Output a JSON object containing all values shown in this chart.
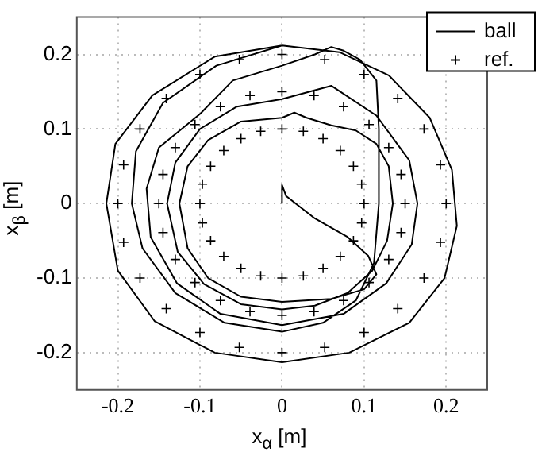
{
  "chart_data": {
    "type": "line",
    "xlabel": "x$_{α}$ [m]",
    "ylabel": "x$_{β}$ [m]",
    "xlim": [
      -0.25,
      0.25
    ],
    "ylim": [
      -0.25,
      0.25
    ],
    "xticks": [
      -0.2,
      -0.1,
      0,
      0.1,
      0.2
    ],
    "yticks": [
      -0.2,
      -0.1,
      0,
      0.1,
      0.2
    ],
    "grid": true,
    "legend": "top right",
    "series": [
      {
        "name": "ball",
        "type": "line",
        "color": "#000000",
        "marker": "none",
        "line_style": "solid",
        "x": [
          0,
          0,
          0.005,
          0.04,
          0.08,
          0.105,
          0.115,
          0.1,
          0.06,
          0,
          -0.05,
          -0.09,
          -0.115,
          -0.125,
          -0.115,
          -0.09,
          -0.05,
          0,
          0.015,
          0.03,
          0.06,
          0.09,
          0.115,
          0.13,
          0.135,
          0.128,
          0.11,
          0.08,
          0.04,
          0,
          -0.05,
          -0.095,
          -0.127,
          -0.14,
          -0.13,
          -0.1,
          -0.055,
          0,
          0.06,
          0.115,
          0.155,
          0.165,
          0.158,
          0.127,
          0.075,
          0,
          -0.075,
          -0.128,
          -0.16,
          -0.165,
          -0.15,
          -0.1,
          -0.06,
          0,
          0.04,
          0.06,
          0.075,
          0.095,
          0.115,
          0.118,
          0.118,
          0.112,
          0.09,
          0.05,
          0,
          -0.07,
          -0.13,
          -0.17,
          -0.183,
          -0.178,
          -0.145,
          -0.08,
          0,
          0.07,
          0.13,
          0.18,
          0.207,
          0.213,
          0.198,
          0.155,
          0.082,
          0,
          -0.082,
          -0.155,
          -0.2,
          -0.214,
          -0.203,
          -0.158,
          -0.082,
          0
        ],
        "values": [
          0,
          0.025,
          0.01,
          -0.02,
          -0.045,
          -0.07,
          -0.095,
          -0.115,
          -0.128,
          -0.132,
          -0.125,
          -0.1,
          -0.06,
          0,
          0.05,
          0.085,
          0.11,
          0.115,
          0.122,
          0.115,
          0.105,
          0.098,
          0.08,
          0.05,
          0,
          -0.05,
          -0.09,
          -0.12,
          -0.137,
          -0.142,
          -0.135,
          -0.108,
          -0.065,
          0,
          0.055,
          0.1,
          0.13,
          0.14,
          0.158,
          0.118,
          0.058,
          0,
          -0.055,
          -0.107,
          -0.148,
          -0.163,
          -0.148,
          -0.107,
          -0.045,
          0.02,
          0.075,
          0.12,
          0.165,
          0.185,
          0.2,
          0.21,
          0.205,
          0.193,
          0.165,
          0.1,
          0,
          -0.08,
          -0.13,
          -0.16,
          -0.172,
          -0.16,
          -0.12,
          -0.06,
          0,
          0.07,
          0.135,
          0.185,
          0.212,
          0.203,
          0.172,
          0.115,
          0.045,
          -0.03,
          -0.1,
          -0.16,
          -0.2,
          -0.213,
          -0.2,
          -0.158,
          -0.09,
          0,
          0.08,
          0.145,
          0.197,
          0.212
        ]
      },
      {
        "name": "ref.",
        "type": "scatter",
        "color": "#000000",
        "marker": "cross",
        "x": [
          0.2,
          0.193,
          0.173,
          0.141,
          0.1,
          0.052,
          0,
          -0.052,
          -0.1,
          -0.141,
          -0.173,
          -0.193,
          -0.2,
          -0.193,
          -0.173,
          -0.141,
          -0.1,
          -0.052,
          0,
          0.052,
          0.1,
          0.141,
          0.173,
          0.193,
          0.15,
          0.145,
          0.13,
          0.106,
          0.075,
          0.039,
          0,
          -0.039,
          -0.075,
          -0.106,
          -0.13,
          -0.145,
          -0.15,
          -0.145,
          -0.13,
          -0.106,
          -0.075,
          -0.039,
          0,
          0.039,
          0.075,
          0.106,
          0.13,
          0.145,
          0.1,
          0.097,
          0.087,
          0.071,
          0.05,
          0.026,
          0,
          -0.026,
          -0.05,
          -0.071,
          -0.087,
          -0.097,
          -0.1,
          -0.097,
          -0.087,
          -0.071,
          -0.05,
          -0.026,
          0,
          0.026,
          0.05,
          0.071,
          0.087,
          0.097
        ],
        "values": [
          0,
          0.052,
          0.1,
          0.141,
          0.173,
          0.193,
          0.2,
          0.193,
          0.173,
          0.141,
          0.1,
          0.052,
          0,
          -0.052,
          -0.1,
          -0.141,
          -0.173,
          -0.193,
          -0.2,
          -0.193,
          -0.173,
          -0.141,
          -0.1,
          -0.052,
          0,
          0.039,
          0.075,
          0.106,
          0.13,
          0.145,
          0.15,
          0.145,
          0.13,
          0.106,
          0.075,
          0.039,
          0,
          -0.039,
          -0.075,
          -0.106,
          -0.13,
          -0.145,
          -0.15,
          -0.145,
          -0.13,
          -0.106,
          -0.075,
          -0.039,
          0,
          0.026,
          0.05,
          0.071,
          0.087,
          0.097,
          0.1,
          0.097,
          0.087,
          0.071,
          0.05,
          0.026,
          0,
          -0.026,
          -0.05,
          -0.071,
          -0.087,
          -0.097,
          -0.1,
          -0.097,
          -0.087,
          -0.071,
          -0.05,
          -0.026
        ]
      }
    ]
  }
}
